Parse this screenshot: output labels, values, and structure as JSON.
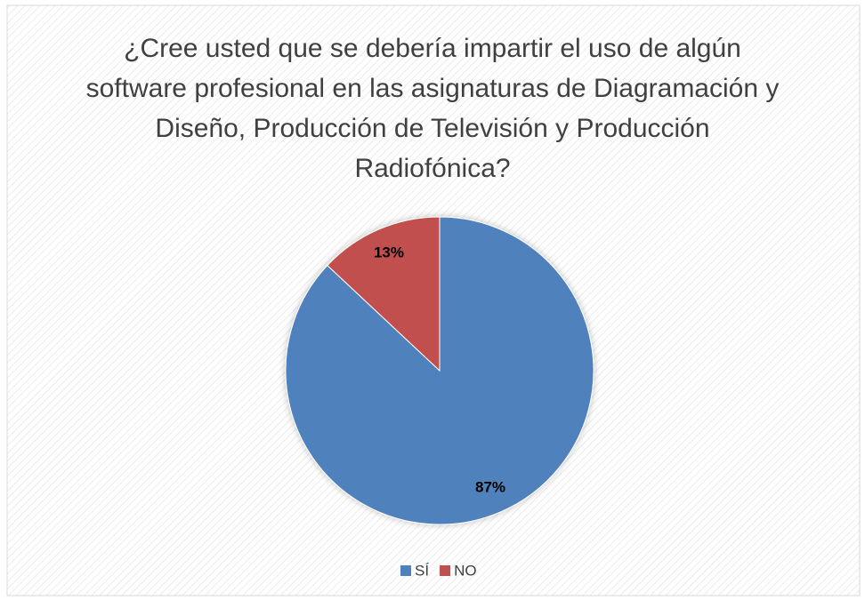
{
  "chart_data": {
    "type": "pie",
    "title": "¿Cree usted que se debería impartir el uso de algún software profesional en las asignaturas de Diagramación y Diseño, Producción de Televisión y Producción Radiofónica?",
    "categories": [
      "SÍ",
      "NO"
    ],
    "values": [
      87,
      13
    ],
    "value_labels": [
      "87%",
      "13%"
    ],
    "colors": [
      "#4f81bd",
      "#c0504d"
    ],
    "legend": "bottom"
  }
}
